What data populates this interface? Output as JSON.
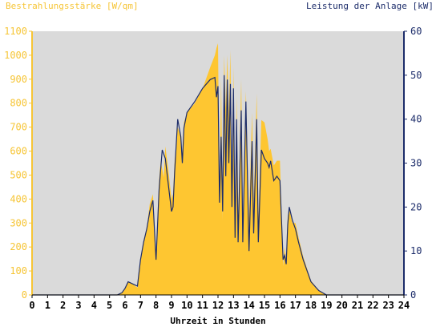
{
  "chart_data": {
    "type": "area",
    "left_axis_title": "Bestrahlungsstärke [W/qm]",
    "right_axis_title": "Leistung der Anlage [kW]",
    "x_axis_title": "Uhrzeit in Stunden",
    "x_ticks": [
      "0",
      "1",
      "2",
      "3",
      "4",
      "5",
      "6",
      "7",
      "8",
      "9",
      "10",
      "11",
      "12",
      "13",
      "14",
      "15",
      "16",
      "17",
      "18",
      "19",
      "20",
      "21",
      "22",
      "23",
      "24"
    ],
    "left_ticks": [
      "0",
      "100",
      "200",
      "300",
      "400",
      "500",
      "600",
      "700",
      "800",
      "900",
      "1000",
      "1100"
    ],
    "right_ticks": [
      "0",
      "10",
      "20",
      "30",
      "40",
      "50",
      "60"
    ],
    "xlim": [
      0,
      24
    ],
    "left_ylim": [
      0,
      1100
    ],
    "right_ylim": [
      0,
      60
    ],
    "grid": false,
    "series": [
      {
        "name": "Bestrahlungsstärke [W/qm]",
        "axis": "left",
        "kind": "area",
        "x": [
          0,
          5.0,
          5.5,
          5.8,
          6.0,
          6.2,
          6.5,
          6.8,
          7.0,
          7.2,
          7.4,
          7.6,
          7.8,
          8.0,
          8.2,
          8.3,
          8.5,
          8.6,
          8.8,
          9.0,
          9.1,
          9.2,
          9.4,
          9.6,
          9.7,
          9.8,
          10.0,
          10.5,
          11.0,
          11.5,
          11.8,
          11.9,
          12.0,
          12.1,
          12.2,
          12.3,
          12.4,
          12.5,
          12.6,
          12.7,
          12.8,
          12.9,
          13.0,
          13.1,
          13.2,
          13.3,
          13.5,
          13.6,
          13.8,
          14.0,
          14.2,
          14.3,
          14.5,
          14.6,
          14.8,
          15.0,
          15.2,
          15.3,
          15.4,
          15.6,
          15.8,
          16.0,
          16.2,
          16.3,
          16.4,
          16.5,
          16.6,
          16.8,
          17.0,
          17.2,
          17.5,
          18.0,
          18.5,
          19.0,
          19.2,
          19.5,
          24
        ],
        "values": [
          0,
          0,
          2,
          10,
          25,
          55,
          45,
          30,
          150,
          230,
          280,
          380,
          420,
          170,
          480,
          560,
          490,
          620,
          520,
          400,
          420,
          560,
          700,
          660,
          580,
          720,
          760,
          800,
          860,
          950,
          1000,
          1030,
          1050,
          400,
          900,
          310,
          1000,
          780,
          1000,
          750,
          1020,
          380,
          950,
          300,
          830,
          300,
          900,
          280,
          850,
          320,
          760,
          380,
          840,
          300,
          730,
          720,
          650,
          600,
          610,
          540,
          560,
          560,
          120,
          200,
          150,
          330,
          360,
          300,
          300,
          240,
          160,
          60,
          20,
          0,
          0,
          0,
          0
        ]
      },
      {
        "name": "Leistung der Anlage [kW]",
        "axis": "right",
        "kind": "line",
        "x": [
          0,
          5.0,
          5.5,
          5.8,
          6.0,
          6.2,
          6.5,
          6.8,
          7.0,
          7.2,
          7.4,
          7.6,
          7.8,
          8.0,
          8.1,
          8.2,
          8.4,
          8.6,
          8.8,
          9.0,
          9.1,
          9.2,
          9.4,
          9.6,
          9.7,
          9.8,
          10.0,
          10.5,
          11.0,
          11.5,
          11.8,
          11.9,
          12.0,
          12.1,
          12.2,
          12.3,
          12.4,
          12.5,
          12.6,
          12.7,
          12.8,
          12.9,
          13.0,
          13.1,
          13.2,
          13.3,
          13.5,
          13.6,
          13.8,
          14.0,
          14.2,
          14.3,
          14.5,
          14.6,
          14.8,
          15.0,
          15.2,
          15.3,
          15.4,
          15.6,
          15.8,
          16.0,
          16.2,
          16.3,
          16.4,
          16.5,
          16.6,
          16.8,
          17.0,
          17.2,
          17.5,
          18.0,
          18.5,
          19.0,
          19.3,
          19.6,
          24
        ],
        "values": [
          0,
          0,
          0,
          0.5,
          1.5,
          3,
          2.5,
          2,
          8,
          12,
          15,
          19,
          21.5,
          8,
          16,
          24,
          33,
          31,
          25,
          19,
          20,
          28,
          40,
          36,
          30,
          38,
          41.5,
          44,
          47,
          49,
          49.5,
          45,
          47.5,
          21,
          36,
          19,
          50,
          27,
          49,
          30,
          48,
          20,
          47,
          13,
          40,
          12,
          42,
          12,
          44,
          10,
          35,
          14,
          40,
          12,
          33,
          31,
          30,
          29,
          30.5,
          26,
          27,
          26,
          8,
          9,
          7,
          16,
          20,
          17,
          15,
          12,
          8,
          3,
          1,
          0,
          0,
          0,
          0
        ]
      }
    ]
  }
}
